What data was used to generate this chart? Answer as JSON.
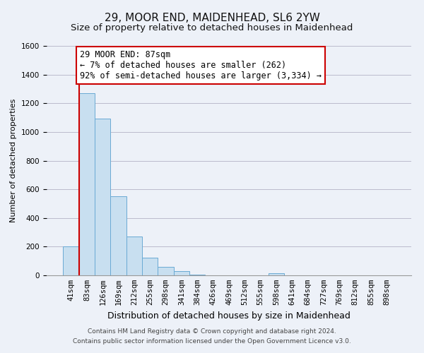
{
  "title": "29, MOOR END, MAIDENHEAD, SL6 2YW",
  "subtitle": "Size of property relative to detached houses in Maidenhead",
  "xlabel": "Distribution of detached houses by size in Maidenhead",
  "ylabel": "Number of detached properties",
  "footer_line1": "Contains HM Land Registry data © Crown copyright and database right 2024.",
  "footer_line2": "Contains public sector information licensed under the Open Government Licence v3.0.",
  "bar_labels": [
    "41sqm",
    "83sqm",
    "126sqm",
    "169sqm",
    "212sqm",
    "255sqm",
    "298sqm",
    "341sqm",
    "384sqm",
    "426sqm",
    "469sqm",
    "512sqm",
    "555sqm",
    "598sqm",
    "641sqm",
    "684sqm",
    "727sqm",
    "769sqm",
    "812sqm",
    "855sqm",
    "898sqm"
  ],
  "bar_values": [
    200,
    1270,
    1095,
    553,
    270,
    125,
    60,
    28,
    5,
    0,
    0,
    0,
    0,
    15,
    0,
    0,
    0,
    0,
    0,
    0,
    0
  ],
  "bar_color": "#c8dff0",
  "bar_edge_color": "#6aaad4",
  "highlight_line_color": "#cc0000",
  "annotation_box_text_line1": "29 MOOR END: 87sqm",
  "annotation_box_text_line2": "← 7% of detached houses are smaller (262)",
  "annotation_box_text_line3": "92% of semi-detached houses are larger (3,334) →",
  "annotation_box_facecolor": "white",
  "annotation_box_edgecolor": "#cc0000",
  "ylim": [
    0,
    1600
  ],
  "yticks": [
    0,
    200,
    400,
    600,
    800,
    1000,
    1200,
    1400,
    1600
  ],
  "grid_color": "#bbbbcc",
  "bg_color": "#edf1f8",
  "title_fontsize": 11,
  "subtitle_fontsize": 9.5,
  "xlabel_fontsize": 9,
  "ylabel_fontsize": 8,
  "tick_fontsize": 7.5,
  "annotation_fontsize": 8.5,
  "footer_fontsize": 6.5
}
